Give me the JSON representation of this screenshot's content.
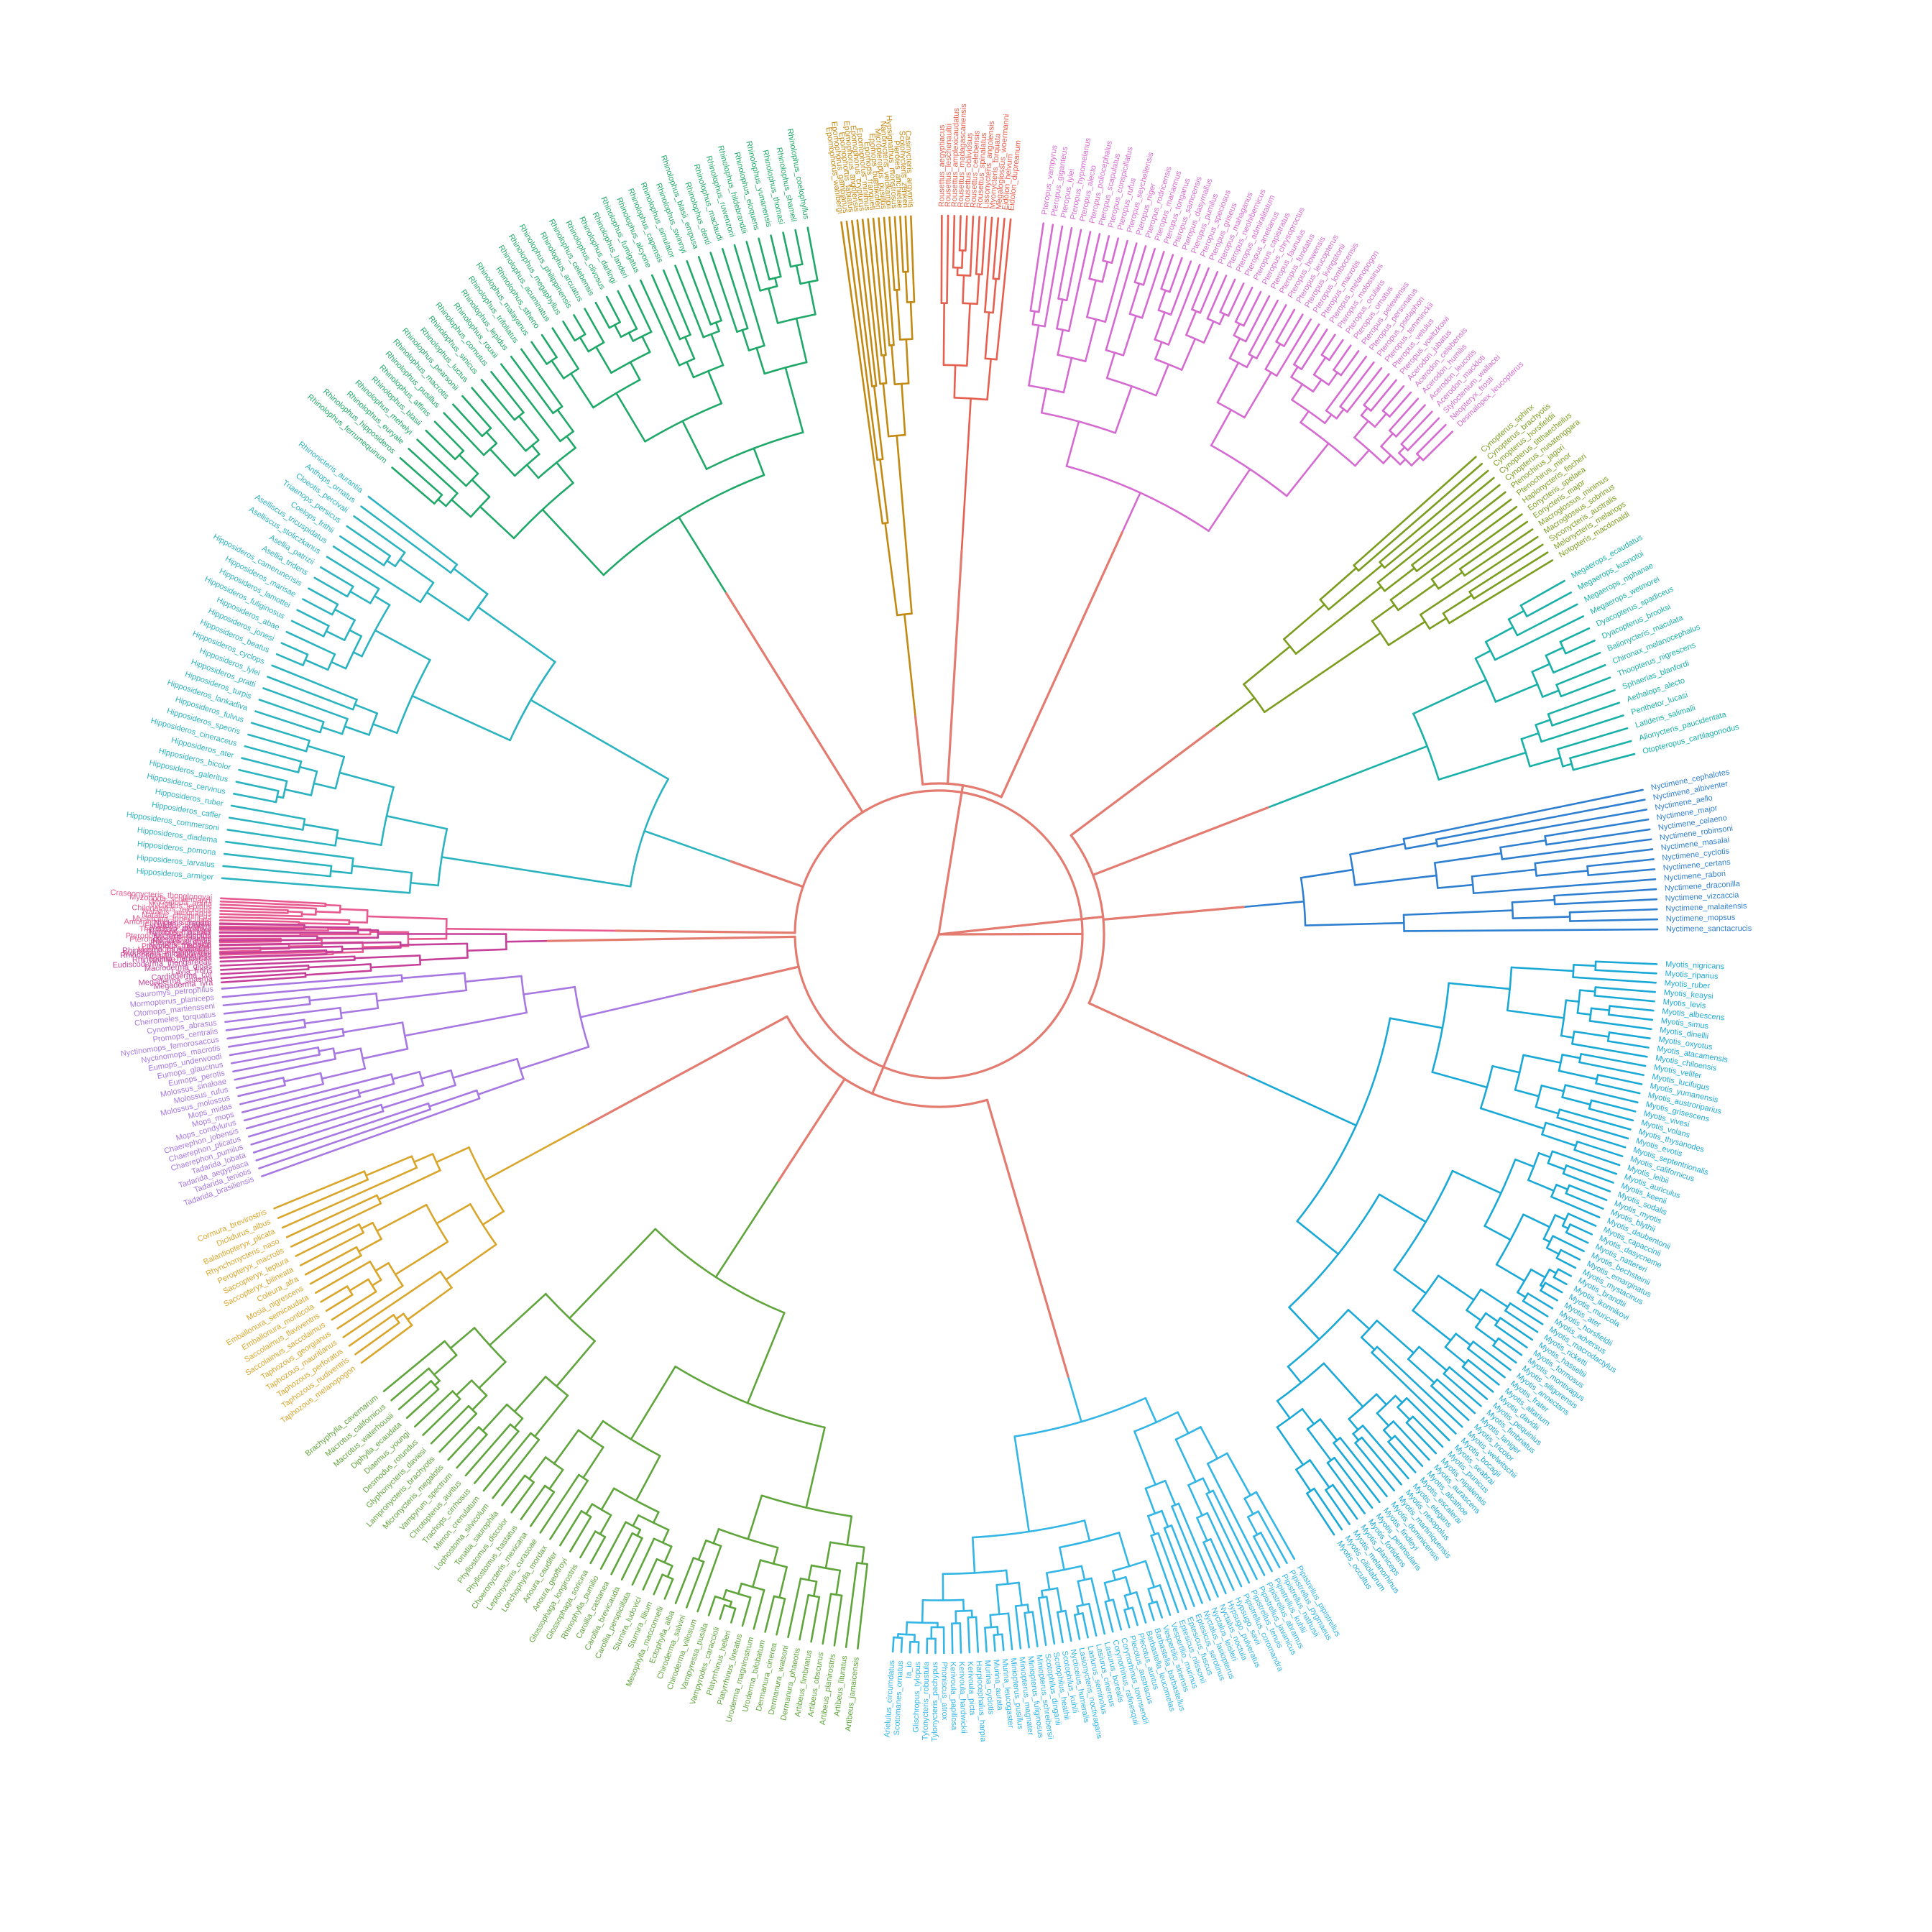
{
  "diagram": {
    "type": "circular-dendrogram",
    "root_color": "#e37b70",
    "clades": [
      {
        "group": "Myotis",
        "color": "#1aa9d6",
        "labels": [
          "Myotis_nigricans",
          "Myotis_riparius",
          "Myotis_ruber",
          "Myotis_keaysi",
          "Myotis_levis",
          "Myotis_albescens",
          "Myotis_simus",
          "Myotis_dinellii",
          "Myotis_oxyotus",
          "Myotis_atacamensis",
          "Myotis_chiloensis",
          "Myotis_velifer",
          "Myotis_lucifugus",
          "Myotis_yumanensis",
          "Myotis_austroriparius",
          "Myotis_grisescens",
          "Myotis_vivesi",
          "Myotis_volans",
          "Myotis_thysanodes",
          "Myotis_evotis",
          "Myotis_septentrionalis",
          "Myotis_californicus",
          "Myotis_leibii",
          "Myotis_auriculus",
          "Myotis_keenii",
          "Myotis_sodalis",
          "Myotis_myotis",
          "Myotis_blythii",
          "Myotis_daubentonii",
          "Myotis_capaccinii",
          "Myotis_dasycneme",
          "Myotis_nattereri",
          "Myotis_bechsteinii",
          "Myotis_emarginatus",
          "Myotis_mystacinus",
          "Myotis_brandtii",
          "Myotis_ikonnikovi",
          "Myotis_muricola",
          "Myotis_ater",
          "Myotis_horsfieldii",
          "Myotis_adversus",
          "Myotis_macrodactylus",
          "Myotis_ricketti",
          "Myotis_hasseltii",
          "Myotis_formosus",
          "Myotis_montivagus",
          "Myotis_siligorensis",
          "Myotis_annectans",
          "Myotis_frater",
          "Myotis_altarium",
          "Myotis_davidii",
          "Myotis_pequinius",
          "Myotis_fimbriatus",
          "Myotis_laniger",
          "Myotis_tricolor",
          "Myotis_welwitschii",
          "Myotis_bocagii",
          "Myotis_seabrai",
          "Myotis_punicus",
          "Myotis_nipalensis",
          "Myotis_aurascens",
          "Myotis_alcathoe",
          "Myotis_escalerai",
          "Myotis_elegans",
          "Myotis_nesopolus",
          "Myotis_martiniquensis",
          "Myotis_dominicensis",
          "Myotis_findleyi",
          "Myotis_peninsularis",
          "Myotis_fortidens",
          "Myotis_planiceps",
          "Myotis_melanorhinus",
          "Myotis_ciliolabrum",
          "Myotis_occultus"
        ]
      },
      {
        "group": "Nyctimene",
        "color": "#2f7fd0",
        "labels": [
          "Nyctimene_cephalotes",
          "Nyctimene_albiventer",
          "Nyctimene_aello",
          "Nyctimene_major",
          "Nyctimene_celaeno",
          "Nyctimene_robinsoni",
          "Nyctimene_masalai",
          "Nyctimene_cyclotis",
          "Nyctimene_certans",
          "Nyctimene_rabori",
          "Nyctimene_draconilla",
          "Nyctimene_vizcaccia",
          "Nyctimene_malaitensis",
          "Nyctimene_mopsus",
          "Nyctimene_sanctacrucis"
        ]
      },
      {
        "group": "Megaerops",
        "color": "#19b0a8",
        "labels": [
          "Megaerops_ecaudatus",
          "Megaerops_kusnotoi",
          "Megaerops_niphanae",
          "Megaerops_wetmorei",
          "Dyacopterus_spadiceus",
          "Dyacopterus_brooksi",
          "Balionycteris_maculata",
          "Chironax_melanocephalus",
          "Thoopterus_nigrescens",
          "Sphaerias_blanfordi",
          "Aethalops_alecto",
          "Penthetor_lucasi",
          "Latidens_salimalii",
          "Alionycteris_paucidentata",
          "Otopteropus_cartilagonodus"
        ]
      },
      {
        "group": "Cynopterus",
        "color": "#7b9d1e",
        "labels": [
          "Cynopterus_sphinx",
          "Cynopterus_brachyotis",
          "Cynopterus_horsfieldii",
          "Cynopterus_titthaecheilus",
          "Cynopterus_nusatenggara",
          "Ptenochirus_jagori",
          "Ptenochirus_minor",
          "Haplonycteris_fischeri",
          "Eonycteris_spelaea",
          "Eonycteris_major",
          "Macroglossus_minimus",
          "Macroglossus_sobrinus",
          "Syconycteris_australis",
          "Melonycteris_melanops",
          "Notopteris_macdonaldi"
        ]
      },
      {
        "group": "Pteropus",
        "color": "#d56bd1",
        "labels": [
          "Pteropus_vampyrus",
          "Pteropus_giganteus",
          "Pteropus_lylei",
          "Pteropus_hypomelanus",
          "Pteropus_alecto",
          "Pteropus_poliocephalus",
          "Pteropus_scapulatus",
          "Pteropus_conspicillatus",
          "Pteropus_rufus",
          "Pteropus_seychellensis",
          "Pteropus_niger",
          "Pteropus_rodricensis",
          "Pteropus_mariannus",
          "Pteropus_tonganus",
          "Pteropus_samoensis",
          "Pteropus_dasymallus",
          "Pteropus_pumilus",
          "Pteropus_speciosus",
          "Pteropus_griseus",
          "Pteropus_mahaganus",
          "Pteropus_neohibernicus",
          "Pteropus_admiralitatum",
          "Pteropus_anetianus",
          "Pteropus_capistratus",
          "Pteropus_chrysoproctus",
          "Pteropus_faunulus",
          "Pteropus_fundatus",
          "Pteropus_howensis",
          "Pteropus_leucopterus",
          "Pteropus_livingstonii",
          "Pteropus_lombocensis",
          "Pteropus_macrotis",
          "Pteropus_melanopogon",
          "Pteropus_molossinus",
          "Pteropus_ocularis",
          "Pteropus_ornatus",
          "Pteropus_pelewensis",
          "Pteropus_personatus",
          "Pteropus_pselaphon",
          "Pteropus_temminckii",
          "Pteropus_vetulus",
          "Pteropus_voeltzkowi",
          "Acerodon_jubatus",
          "Acerodon_celebensis",
          "Acerodon_humilis",
          "Acerodon_leucotis",
          "Acerodon_mackloti",
          "Styloctenium_wallacei",
          "Neopteryx_frosti",
          "Desmalopex_leucopterus"
        ]
      },
      {
        "group": "Rousettus",
        "color": "#e5604f",
        "labels": [
          "Rousettus_aegyptiacus",
          "Rousettus_leschenaultii",
          "Rousettus_amplexicaudatus",
          "Rousettus_madagascariensis",
          "Rousettus_obliviosus",
          "Rousettus_celebensis",
          "Rousettus_spinalatus",
          "Lissonycteris_angolensis",
          "Myonycteris_torquata",
          "Megaloglossus_woermanni",
          "Eidolon_helvum",
          "Eidolon_dupreanum"
        ]
      },
      {
        "group": "Epomophorus",
        "color": "#c28a13",
        "labels": [
          "Epomophorus_wahlbergi",
          "Epomophorus_gambianus",
          "Epomophorus_labiatus",
          "Epomophorus_angolensis",
          "Epomophorus_crypturus",
          "Epomophorus_minimus",
          "Epomops_franqueti",
          "Epomops_buettikoferi",
          "Micropteropus_pusillus",
          "Nanonycteris_veldkampii",
          "Hypsignathus_monstrosus",
          "Plerotes_anchietae",
          "Scotonycteris_zenkeri",
          "Casinycteris_argynnis"
        ]
      },
      {
        "group": "Rhinolophus",
        "color": "#1fa868",
        "labels": [
          "Rhinolophus_ferrumequinum",
          "Rhinolophus_hipposideros",
          "Rhinolophus_euryale",
          "Rhinolophus_mehelyi",
          "Rhinolophus_blasii",
          "Rhinolophus_affinis",
          "Rhinolophus_pusillus",
          "Rhinolophus_macrotis",
          "Rhinolophus_pearsonii",
          "Rhinolophus_luctus",
          "Rhinolophus_sinicus",
          "Rhinolophus_cornutus",
          "Rhinolophus_rouxii",
          "Rhinolophus_lepidus",
          "Rhinolophus_trifoliatus",
          "Rhinolophus_malayanus",
          "Rhinolophus_stheno",
          "Rhinolophus_acuminatus",
          "Rhinolophus_megaphyllus",
          "Rhinolophus_philippinensis",
          "Rhinolophus_arcuatus",
          "Rhinolophus_celebensis",
          "Rhinolophus_clivosus",
          "Rhinolophus_darlingi",
          "Rhinolophus_landeri",
          "Rhinolophus_fumigatus",
          "Rhinolophus_alcyone",
          "Rhinolophus_capensis",
          "Rhinolophus_simulator",
          "Rhinolophus_swinnyi",
          "Rhinolophus_blasii_empusa",
          "Rhinolophus_denti",
          "Rhinolophus_maclaudi",
          "Rhinolophus_ruwenzorii",
          "Rhinolophus_hildebrandtii",
          "Rhinolophus_eloquens",
          "Rhinolophus_yunanensis",
          "Rhinolophus_thomasi",
          "Rhinolophus_shameli",
          "Rhinolophus_coelophyllus"
        ]
      },
      {
        "group": "Hipposideros",
        "color": "#2bb3c0",
        "labels": [
          "Hipposideros_armiger",
          "Hipposideros_larvatus",
          "Hipposideros_pomona",
          "Hipposideros_diadema",
          "Hipposideros_commersoni",
          "Hipposideros_caffer",
          "Hipposideros_ruber",
          "Hipposideros_cervinus",
          "Hipposideros_galeritus",
          "Hipposideros_bicolor",
          "Hipposideros_ater",
          "Hipposideros_cineraceus",
          "Hipposideros_speoris",
          "Hipposideros_fulvus",
          "Hipposideros_lankadiva",
          "Hipposideros_turpis",
          "Hipposideros_pratti",
          "Hipposideros_lylei",
          "Hipposideros_cyclops",
          "Hipposideros_beatus",
          "Hipposideros_jonesi",
          "Hipposideros_abae",
          "Hipposideros_fuliginosus",
          "Hipposideros_lamottei",
          "Hipposideros_marisae",
          "Hipposideros_camerunensis",
          "Asellia_tridens",
          "Asellia_patrizii",
          "Aselliscus_stoliczkanus",
          "Aselliscus_tricuspidatus",
          "Coelops_frithii",
          "Triaenops_persicus",
          "Cloeotis_percivali",
          "Anthops_ornatus",
          "Rhinonicteris_aurantia"
        ]
      },
      {
        "group": "Molossidae",
        "color": "#a778e2",
        "labels": [
          "Tadarida_brasiliensis",
          "Tadarida_teniotis",
          "Tadarida_aegyptiaca",
          "Tadarida_lobata",
          "Chaerephon_pumilus",
          "Chaerephon_plicatus",
          "Chaerephon_jobensis",
          "Mops_condylurus",
          "Mops_mops",
          "Mops_midas",
          "Molossus_molossus",
          "Molossus_rufus",
          "Molossus_sinaloae",
          "Eumops_perotis",
          "Eumops_glaucinus",
          "Eumops_underwoodi",
          "Nyctinomops_macrotis",
          "Nyctinomops_femorosaccus",
          "Promops_centralis",
          "Cynomops_abrasus",
          "Cheiromeles_torquatus",
          "Otomops_martiensseni",
          "Mormopterus_planiceps",
          "Sauromys_petrophilus"
        ]
      },
      {
        "group": "Emballonuridae",
        "color": "#d9a52a",
        "labels": [
          "Taphozous_melanopogon",
          "Taphozous_nudiventris",
          "Taphozous_perforatus",
          "Taphozous_mauritianus",
          "Taphozous_georgianus",
          "Saccolaimus_saccolaimus",
          "Saccolaimus_flaviventris",
          "Emballonura_monticola",
          "Emballonura_semicaudata",
          "Mosia_nigrescens",
          "Coleura_afra",
          "Saccopteryx_bilineata",
          "Saccopteryx_leptura",
          "Peropteryx_macrotis",
          "Rhynchonycteris_naso",
          "Balantiopteryx_plicata",
          "Diclidurus_albus",
          "Cormura_brevirostris"
        ]
      },
      {
        "group": "Phyllostomidae",
        "color": "#5fa53c",
        "labels": [
          "Artibeus_jamaicensis",
          "Artibeus_lituratus",
          "Artibeus_planirostris",
          "Artibeus_obscurus",
          "Artibeus_fimbriatus",
          "Dermanura_phaeotis",
          "Dermanura_watsoni",
          "Dermanura_cinerea",
          "Uroderma_bilobatum",
          "Uroderma_magnirostrum",
          "Platyrrhinus_lineatus",
          "Platyrrhinus_helleri",
          "Vampyrodes_caraccioli",
          "Vampyressa_pusilla",
          "Chiroderma_villosum",
          "Chiroderma_salvini",
          "Ectophylla_alba",
          "Mesophylla_macconnelli",
          "Sturnira_lilium",
          "Sturnira_ludovici",
          "Carollia_perspicillata",
          "Carollia_brevicauda",
          "Carollia_castanea",
          "Rhinophylla_pumilio",
          "Glossophaga_soricina",
          "Glossophaga_longirostris",
          "Anoura_geoffroyi",
          "Anoura_caudifer",
          "Lonchophylla_mordax",
          "Leptonycteris_curasoae",
          "Choeronycteris_mexicana",
          "Phyllostomus_hastatus",
          "Phyllostomus_discolor",
          "Tonatia_saurophila",
          "Lophostoma_silvicolum",
          "Mimon_crenulatum",
          "Trachops_cirrhosus",
          "Chrotopterus_auritus",
          "Vampyrum_spectrum",
          "Micronycteris_megalotis",
          "Lampronycteris_brachyotis",
          "Glyphonycteris_daviesi",
          "Desmodus_rotundus",
          "Diaemus_youngi",
          "Diphylla_ecaudata",
          "Macrotus_waterhousii",
          "Macrotus_californicus",
          "Brachyphylla_cavernarum"
        ]
      },
      {
        "group": "Vespertilionidae",
        "color": "#33b5e5",
        "labels": [
          "Pipistrellus_pipistrellus",
          "Pipistrellus_pygmaeus",
          "Pipistrellus_nathusii",
          "Pipistrellus_kuhlii",
          "Pipistrellus_abramus",
          "Pipistrellus_javanicus",
          "Pipistrellus_tenuis",
          "Pipistrellus_coromandra",
          "Hypsugo_savii",
          "Hypsugo_pulveratus",
          "Nyctalus_noctula",
          "Nyctalus_leisleri",
          "Nyctalus_lasiopterus",
          "Eptesicus_serotinus",
          "Eptesicus_fuscus",
          "Eptesicus_nilssonii",
          "Vespertilio_murinus",
          "Vespertilio_sinensis",
          "Barbastella_barbastellus",
          "Barbastella_leucomelas",
          "Plecotus_auritus",
          "Plecotus_austriacus",
          "Corynorhinus_townsendii",
          "Corynorhinus_rafinesquii",
          "Lasiurus_borealis",
          "Lasiurus_cinereus",
          "Lasiurus_seminolus",
          "Lasionycteris_noctivagans",
          "Nycticeius_humeralis",
          "Scotophilus_kuhlii",
          "Scotophilus_heathii",
          "Scotophilus_dinganii",
          "Miniopterus_schreibersii",
          "Miniopterus_fuliginosus",
          "Miniopterus_magnater",
          "Miniopterus_pusillus",
          "Murina_leucogaster",
          "Murina_aurata",
          "Murina_cyclotis",
          "Harpiocephalus_harpia",
          "Kerivoula_picta",
          "Kerivoula_hardwickii",
          "Kerivoula_papillosa",
          "Phoniscus_atrox",
          "Tylonycteris_pachypus",
          "Tylonycteris_robustula",
          "Glischropus_tylopus",
          "Ia_io",
          "Scotomanes_ornatus",
          "Arielulus_circumdatus"
        ]
      },
      {
        "group": "Noctilionoidea",
        "color": "#e65a8f",
        "labels": [
          "Noctilio_leporinus",
          "Noctilio_albiventris",
          "Mormoops_megalophylla",
          "Mormoops_blainvillei",
          "Pteronotus_parnellii",
          "Pteronotus_davyi",
          "Pteronotus_personatus",
          "Pteronotus_gymnonotus",
          "Thyroptera_tricolor",
          "Thyroptera_discifera",
          "Furipterus_horrens",
          "Amorphochilus_schnablii",
          "Mystacina_tuberculata",
          "Natalus_stramineus",
          "Natalus_mexicanus",
          "Chilonatalus_micropus",
          "Nyctiellus_lepidus",
          "Myzopoda_aurita",
          "Myzopoda_schliemanni",
          "Craseonycteris_thonglongyai"
        ]
      },
      {
        "group": "Megadermatidae",
        "color": "#c6409a",
        "labels": [
          "Megaderma_lyra",
          "Megaderma_spasma",
          "Cardioderma_cor",
          "Lavia_frons",
          "Macroderma_gigas",
          "Eudiscoderma_thongareeae",
          "Rhinopoma_hardwickii",
          "Rhinopoma_microphyllum",
          "Rhinopoma_muscatellum",
          "Nycteris_thebaica",
          "Nycteris_grandis",
          "Nycteris_hispida",
          "Nycteris_macrotis",
          "Nycteris_javanica",
          "Nycteris_tragata"
        ]
      }
    ]
  }
}
